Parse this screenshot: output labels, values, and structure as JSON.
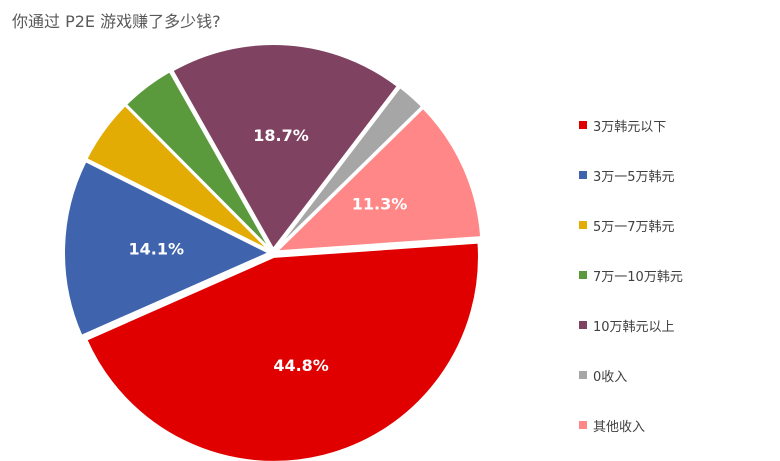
{
  "chart_data": {
    "type": "pie",
    "title": "你通过 P2E 游戏赚了多少钱?",
    "categories": [
      "3万韩元以下",
      "3万一5万韩元",
      "5万一7万韩元",
      "7万一10万韩元",
      "10万韩元以上",
      "0收入",
      "其他收入"
    ],
    "values": [
      44.8,
      14.1,
      5.2,
      4.3,
      18.7,
      2.3,
      11.3
    ],
    "data_labels": [
      "44.8%",
      "14.1%",
      "",
      "",
      "18.7%",
      "",
      "11.3%"
    ],
    "colors": [
      "#E00000",
      "#3F64AD",
      "#E3AC05",
      "#5B9A3C",
      "#7F4361",
      "#A6A6A6",
      "#FF8787"
    ],
    "legend_position": "right",
    "value_unit": "%"
  }
}
